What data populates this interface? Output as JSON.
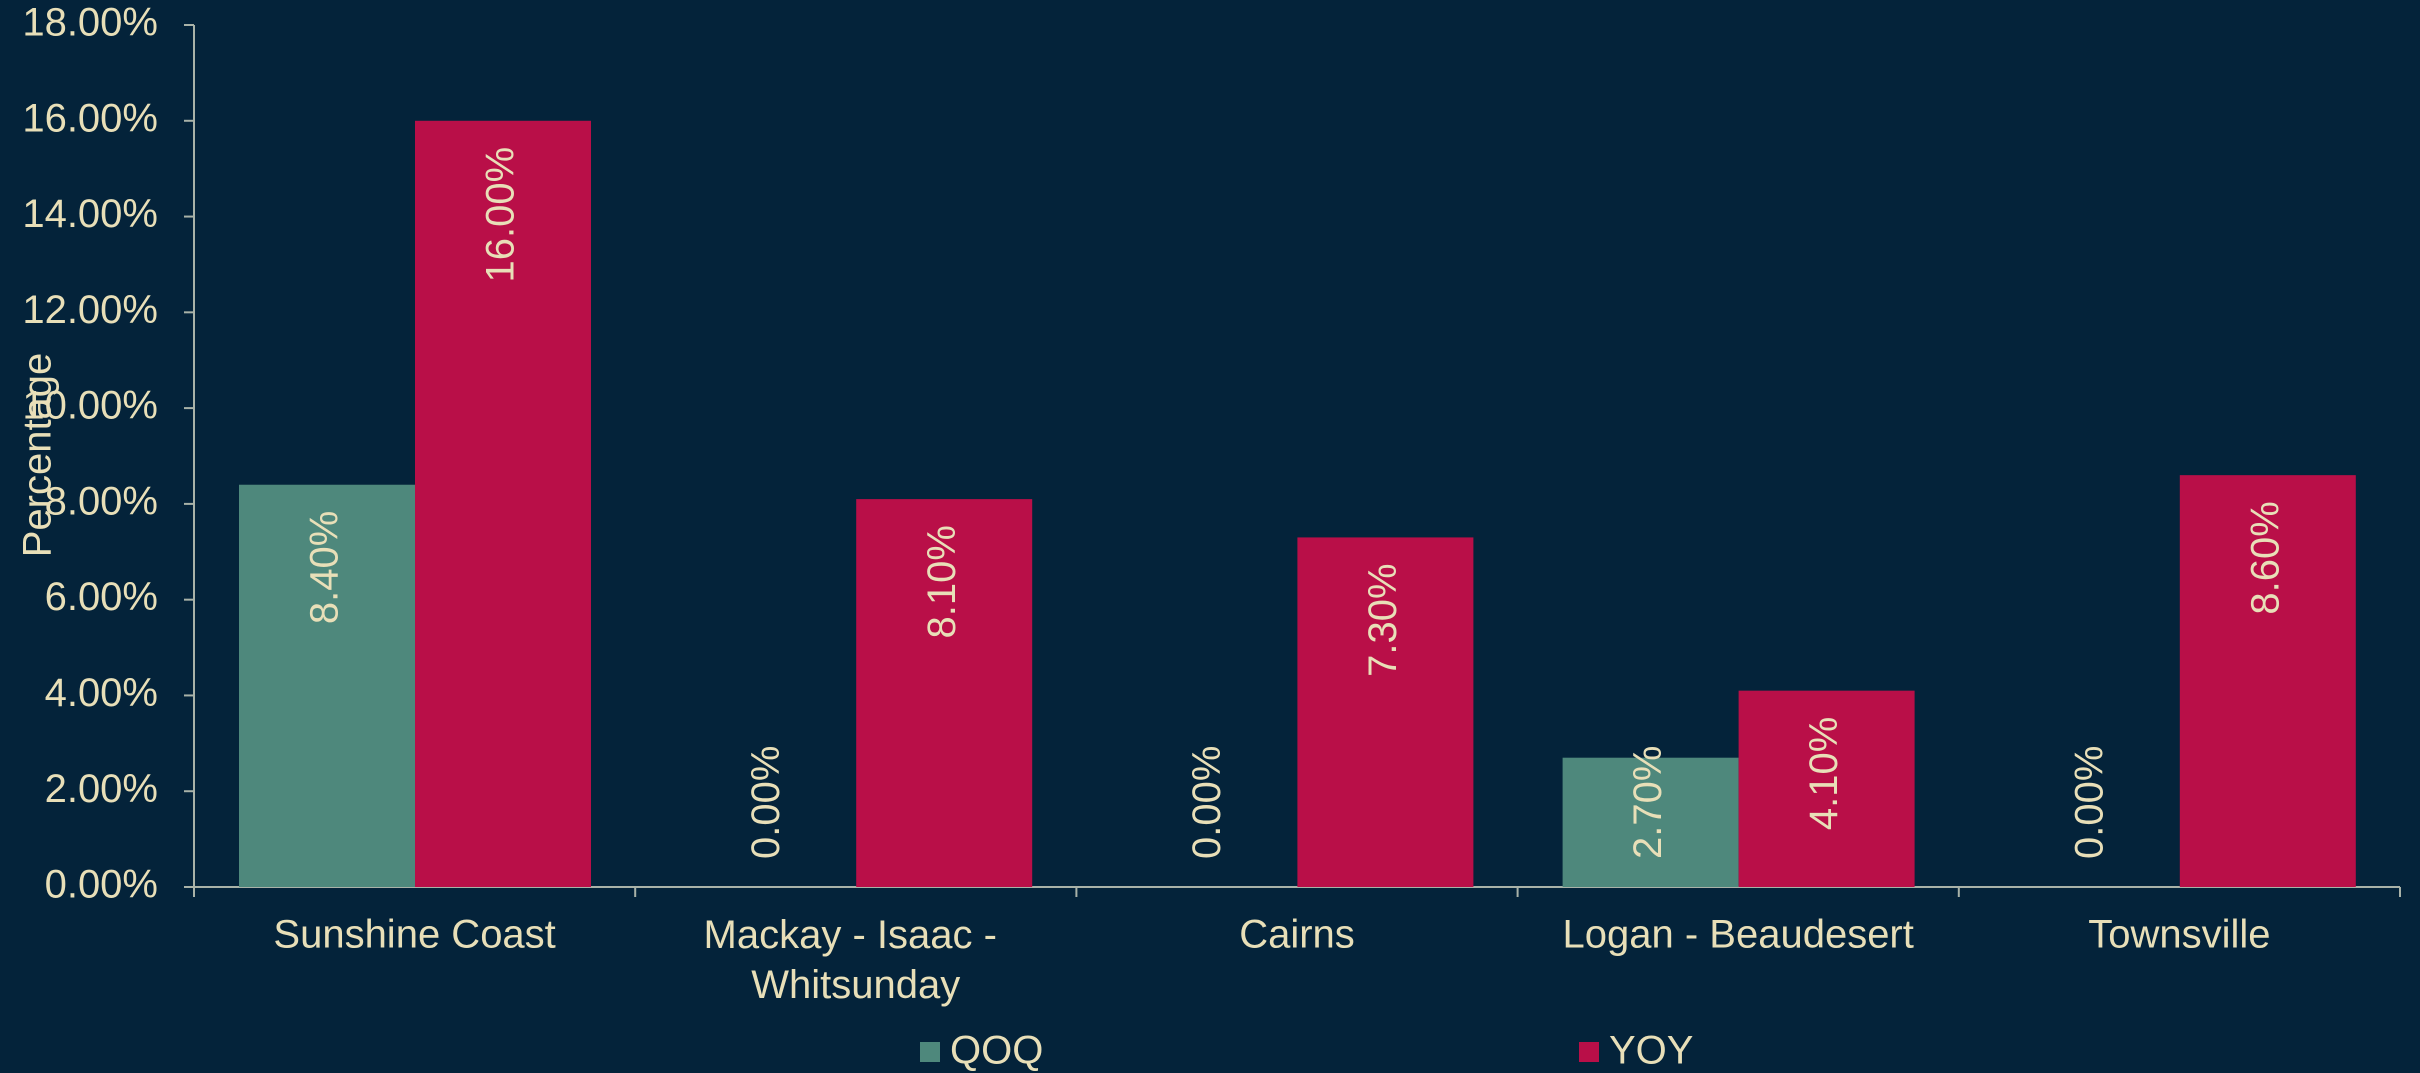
{
  "chart_data": {
    "type": "bar",
    "y_label": "Percentage",
    "categories": [
      "Sunshine Coast",
      "Mackay - Isaac - Whitsunday",
      "Cairns",
      "Logan - Beaudesert",
      "Townsville"
    ],
    "series": [
      {
        "name": "QOQ",
        "color": "#4e887c",
        "values": [
          8.4,
          0,
          0,
          2.7,
          0
        ],
        "value_labels": [
          "8.40%",
          "0.00%",
          "0.00%",
          "2.70%",
          "0.00%"
        ]
      },
      {
        "name": "YOY",
        "color": "#b90f48",
        "values": [
          16,
          8.1,
          7.3,
          4.1,
          8.6
        ],
        "value_labels": [
          "16.00%",
          "8.10%",
          "7.30%",
          "4.10%",
          "8.60%"
        ]
      }
    ],
    "ylim": [
      0,
      18
    ],
    "yticks": [
      {
        "value": 0,
        "label": "0.00%"
      },
      {
        "value": 2,
        "label": "2.00%"
      },
      {
        "value": 4,
        "label": "4.00%"
      },
      {
        "value": 6,
        "label": "6.00%"
      },
      {
        "value": 8,
        "label": "8.00%"
      },
      {
        "value": 10,
        "label": "10.00%"
      },
      {
        "value": 12,
        "label": "12.00%"
      },
      {
        "value": 14,
        "label": "14.00%"
      },
      {
        "value": 16,
        "label": "16.00%"
      },
      {
        "value": 18,
        "label": "18.00%"
      }
    ],
    "legend": "bottom"
  }
}
